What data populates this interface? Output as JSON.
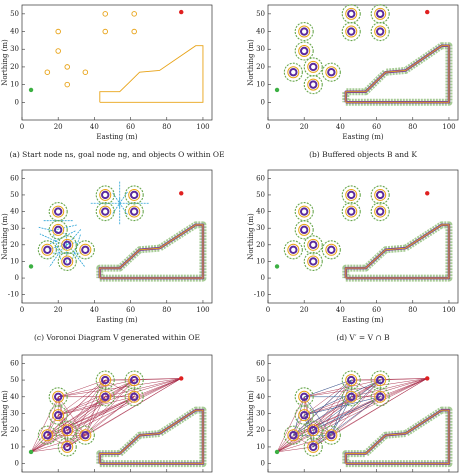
{
  "chart_data": [
    {
      "type": "map",
      "caption": "(a) Start node ns, goal node ng, and objects O within OE",
      "xlabel": "Easting (m)",
      "ylabel": "Northing (m)",
      "xlim": [
        0,
        105
      ],
      "ylim": [
        -10,
        55
      ],
      "xticks": [
        0,
        20,
        40,
        60,
        80,
        100
      ],
      "yticks": [
        0,
        10,
        20,
        30,
        40,
        50
      ],
      "objects": {
        "x": [
          20,
          20,
          46,
          62,
          46,
          62,
          14,
          25,
          35,
          25
        ],
        "y": [
          40,
          29,
          50,
          50,
          40,
          40,
          17,
          20,
          17,
          10
        ]
      },
      "obstacle": {
        "x": [
          43,
          100,
          100,
          96,
          76,
          65,
          54,
          43,
          43
        ],
        "y": [
          0,
          0,
          32,
          32,
          18,
          17,
          6,
          6,
          0
        ]
      },
      "start": {
        "x": 5,
        "y": 7
      },
      "goal": {
        "x": 88,
        "y": 51
      },
      "buffer": false,
      "voronoi": false
    },
    {
      "type": "map",
      "caption": "(b) Buffered objects B and K",
      "xlabel": "Easting (m)",
      "ylabel": "Northing (m)",
      "xlim": [
        0,
        105
      ],
      "ylim": [
        -10,
        55
      ],
      "xticks": [
        0,
        20,
        40,
        60,
        80,
        100
      ],
      "yticks": [
        0,
        10,
        20,
        30,
        40,
        50
      ],
      "objects": {
        "x": [
          20,
          20,
          46,
          62,
          46,
          62,
          14,
          25,
          35,
          25
        ],
        "y": [
          40,
          29,
          50,
          50,
          40,
          40,
          17,
          20,
          17,
          10
        ]
      },
      "obstacle": {
        "x": [
          43,
          100,
          100,
          96,
          76,
          65,
          54,
          43,
          43
        ],
        "y": [
          0,
          0,
          32,
          32,
          18,
          17,
          6,
          6,
          0
        ]
      },
      "start": {
        "x": 5,
        "y": 7
      },
      "goal": {
        "x": 88,
        "y": 51
      },
      "buffer": true,
      "voronoi": false
    },
    {
      "type": "map",
      "caption": "(c) Voronoi Diagram V generated within OE",
      "xlabel": "Easting (m)",
      "ylabel": "Northing (m)",
      "xlim": [
        0,
        105
      ],
      "ylim": [
        -15,
        65
      ],
      "xticks": [
        0,
        20,
        40,
        60,
        80,
        100
      ],
      "yticks": [
        -10,
        0,
        10,
        20,
        30,
        40,
        50,
        60
      ],
      "objects": {
        "x": [
          20,
          20,
          46,
          62,
          46,
          62,
          14,
          25,
          35,
          25
        ],
        "y": [
          40,
          29,
          50,
          50,
          40,
          40,
          17,
          20,
          17,
          10
        ]
      },
      "obstacle": {
        "x": [
          43,
          100,
          100,
          96,
          76,
          65,
          54,
          43,
          43
        ],
        "y": [
          0,
          0,
          32,
          32,
          18,
          17,
          6,
          6,
          0
        ]
      },
      "start": {
        "x": 5,
        "y": 7
      },
      "goal": {
        "x": 88,
        "y": 51
      },
      "buffer": true,
      "voronoi": true
    },
    {
      "type": "map",
      "caption": "(d) V′ = V ∩ B",
      "xlabel": "Easting (m)",
      "ylabel": "Northing (m)",
      "xlim": [
        0,
        105
      ],
      "ylim": [
        -15,
        65
      ],
      "xticks": [
        0,
        20,
        40,
        60,
        80,
        100
      ],
      "yticks": [
        -10,
        0,
        10,
        20,
        30,
        40,
        50,
        60
      ],
      "objects": {
        "x": [
          20,
          20,
          46,
          62,
          46,
          62,
          14,
          25,
          35,
          25
        ],
        "y": [
          40,
          29,
          50,
          50,
          40,
          40,
          17,
          20,
          17,
          10
        ]
      },
      "obstacle": {
        "x": [
          43,
          100,
          100,
          96,
          76,
          65,
          54,
          43,
          43
        ],
        "y": [
          0,
          0,
          32,
          32,
          18,
          17,
          6,
          6,
          0
        ]
      },
      "start": {
        "x": 5,
        "y": 7
      },
      "goal": {
        "x": 88,
        "y": 51
      },
      "buffer": true,
      "voronoi": false
    },
    {
      "type": "map",
      "ylabel": "Northing (m)",
      "xlim": [
        0,
        105
      ],
      "ylim": [
        -5,
        65
      ],
      "xticks": [
        0,
        20,
        40,
        60,
        80,
        100
      ],
      "yticks": [
        0,
        10,
        20,
        30,
        40,
        50,
        60
      ],
      "objects": {
        "x": [
          20,
          20,
          46,
          62,
          46,
          62,
          14,
          25,
          35,
          25
        ],
        "y": [
          40,
          29,
          50,
          50,
          40,
          40,
          17,
          20,
          17,
          10
        ]
      },
      "obstacle": {
        "x": [
          43,
          100,
          100,
          96,
          76,
          65,
          54,
          43,
          43
        ],
        "y": [
          0,
          0,
          32,
          32,
          18,
          17,
          6,
          6,
          0
        ]
      },
      "start": {
        "x": 5,
        "y": 7
      },
      "goal": {
        "x": 88,
        "y": 51
      },
      "buffer": true,
      "voronoi": false,
      "edge_colors": [
        "#a3203f"
      ]
    },
    {
      "type": "map",
      "ylabel": "Northing (m)",
      "xlim": [
        0,
        105
      ],
      "ylim": [
        -5,
        65
      ],
      "xticks": [
        0,
        20,
        40,
        60,
        80,
        100
      ],
      "yticks": [
        0,
        10,
        20,
        30,
        40,
        50,
        60
      ],
      "objects": {
        "x": [
          20,
          20,
          46,
          62,
          46,
          62,
          14,
          25,
          35,
          25
        ],
        "y": [
          40,
          29,
          50,
          50,
          40,
          40,
          17,
          20,
          17,
          10
        ]
      },
      "obstacle": {
        "x": [
          43,
          100,
          100,
          96,
          76,
          65,
          54,
          43,
          43
        ],
        "y": [
          0,
          0,
          32,
          32,
          18,
          17,
          6,
          6,
          0
        ]
      },
      "start": {
        "x": 5,
        "y": 7
      },
      "goal": {
        "x": 88,
        "y": 51
      },
      "buffer": true,
      "voronoi": false,
      "edge_colors": [
        "#a3203f",
        "#1f77b4"
      ]
    }
  ]
}
